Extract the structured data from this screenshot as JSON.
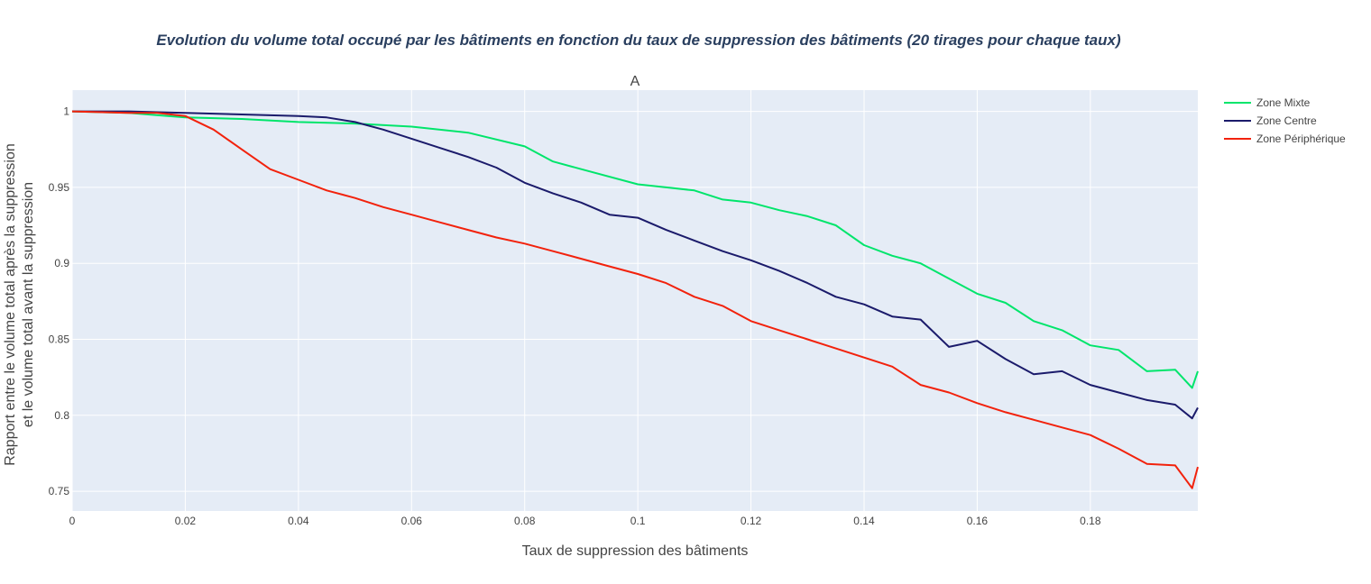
{
  "chart_data": {
    "type": "line",
    "title": "Evolution du volume total occupé par les bâtiments en fonction du taux de suppression des bâtiments (20 tirages pour chaque taux)",
    "subtitle": "A",
    "xlabel": "Taux de suppression des bâtiments",
    "ylabel_line1": "Rapport entre le volume total après la suppression",
    "ylabel_line2": "et le volume total avant la suppression",
    "xlim": [
      0,
      0.199
    ],
    "ylim": [
      0.737,
      1.014
    ],
    "x_ticks": [
      0,
      0.02,
      0.04,
      0.06,
      0.08,
      0.1,
      0.12,
      0.14,
      0.16,
      0.18
    ],
    "x_tick_labels": [
      "0",
      "0.02",
      "0.04",
      "0.06",
      "0.08",
      "0.1",
      "0.12",
      "0.14",
      "0.16",
      "0.18"
    ],
    "y_ticks": [
      0.75,
      0.8,
      0.85,
      0.9,
      0.95,
      1
    ],
    "y_tick_labels": [
      "0.75",
      "0.8",
      "0.85",
      "0.9",
      "0.95",
      "1"
    ],
    "grid": true,
    "legend_position": "top-right, outside plot",
    "colors": {
      "plot_background": "#e5ecf6",
      "grid": "#ffffff",
      "title": "#2a3f5f",
      "axis_text": "#444444"
    },
    "series": [
      {
        "name": "Zone Mixte",
        "color": "#00e56b",
        "x": [
          0,
          0.01,
          0.02,
          0.03,
          0.04,
          0.05,
          0.06,
          0.07,
          0.08,
          0.085,
          0.09,
          0.1,
          0.105,
          0.11,
          0.115,
          0.12,
          0.125,
          0.13,
          0.135,
          0.14,
          0.145,
          0.15,
          0.155,
          0.16,
          0.165,
          0.17,
          0.175,
          0.18,
          0.185,
          0.19,
          0.195,
          0.198,
          0.199
        ],
        "y": [
          1.0,
          0.999,
          0.996,
          0.995,
          0.993,
          0.992,
          0.99,
          0.986,
          0.977,
          0.967,
          0.962,
          0.952,
          0.95,
          0.948,
          0.942,
          0.94,
          0.935,
          0.931,
          0.925,
          0.912,
          0.905,
          0.9,
          0.89,
          0.88,
          0.874,
          0.862,
          0.856,
          0.846,
          0.843,
          0.829,
          0.83,
          0.818,
          0.829
        ]
      },
      {
        "name": "Zone Centre",
        "color": "#1b1b6b",
        "x": [
          0,
          0.01,
          0.02,
          0.03,
          0.04,
          0.045,
          0.05,
          0.055,
          0.06,
          0.065,
          0.07,
          0.075,
          0.08,
          0.085,
          0.09,
          0.095,
          0.1,
          0.105,
          0.11,
          0.115,
          0.12,
          0.125,
          0.13,
          0.135,
          0.14,
          0.145,
          0.15,
          0.155,
          0.16,
          0.165,
          0.17,
          0.175,
          0.18,
          0.185,
          0.19,
          0.195,
          0.198,
          0.199
        ],
        "y": [
          1.0,
          1.0,
          0.999,
          0.998,
          0.997,
          0.996,
          0.993,
          0.988,
          0.982,
          0.976,
          0.97,
          0.963,
          0.953,
          0.946,
          0.94,
          0.932,
          0.93,
          0.922,
          0.915,
          0.908,
          0.902,
          0.895,
          0.887,
          0.878,
          0.873,
          0.865,
          0.863,
          0.845,
          0.849,
          0.837,
          0.827,
          0.829,
          0.82,
          0.815,
          0.81,
          0.807,
          0.798,
          0.805
        ]
      },
      {
        "name": "Zone Périphérique",
        "color": "#f2220c",
        "x": [
          0,
          0.01,
          0.015,
          0.02,
          0.025,
          0.03,
          0.035,
          0.04,
          0.045,
          0.05,
          0.055,
          0.06,
          0.065,
          0.07,
          0.075,
          0.08,
          0.085,
          0.09,
          0.095,
          0.1,
          0.105,
          0.11,
          0.115,
          0.12,
          0.125,
          0.13,
          0.135,
          0.14,
          0.145,
          0.15,
          0.155,
          0.16,
          0.165,
          0.17,
          0.175,
          0.18,
          0.185,
          0.19,
          0.195,
          0.198,
          0.199
        ],
        "y": [
          1.0,
          0.999,
          0.999,
          0.997,
          0.988,
          0.975,
          0.962,
          0.955,
          0.948,
          0.943,
          0.937,
          0.932,
          0.927,
          0.922,
          0.917,
          0.913,
          0.908,
          0.903,
          0.898,
          0.893,
          0.887,
          0.878,
          0.872,
          0.862,
          0.856,
          0.85,
          0.844,
          0.838,
          0.832,
          0.82,
          0.815,
          0.808,
          0.802,
          0.797,
          0.792,
          0.787,
          0.778,
          0.768,
          0.767,
          0.752,
          0.766
        ]
      }
    ]
  }
}
